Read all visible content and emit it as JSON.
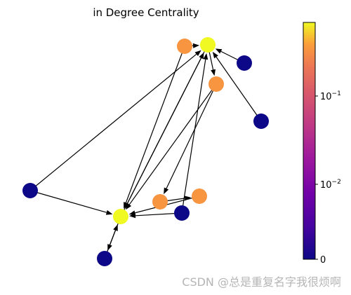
{
  "figure": {
    "title": "in Degree Centrality",
    "watermark": "CSDN @总是重复名字我很烦啊"
  },
  "colorbar": {
    "colormap": "plasma",
    "scale": "log",
    "ticks": [
      {
        "base": "10",
        "exp": "−1"
      },
      {
        "base": "10",
        "exp": "−2"
      },
      {
        "base": "0",
        "exp": ""
      }
    ]
  },
  "graph": {
    "directed": true,
    "nodes": [
      {
        "id": "n0",
        "color": "#f0f921"
      },
      {
        "id": "n1",
        "color": "#f89540"
      },
      {
        "id": "n2",
        "color": "#0d0887"
      },
      {
        "id": "n3",
        "color": "#f89540"
      },
      {
        "id": "n4",
        "color": "#0d0887"
      },
      {
        "id": "n5",
        "color": "#0d0887"
      },
      {
        "id": "n6",
        "color": "#f0f921"
      },
      {
        "id": "n7",
        "color": "#f89540"
      },
      {
        "id": "n8",
        "color": "#f89540"
      },
      {
        "id": "n9",
        "color": "#0d0887"
      },
      {
        "id": "n10",
        "color": "#0d0887"
      }
    ],
    "edges": [
      [
        "n1",
        "n0"
      ],
      [
        "n2",
        "n0"
      ],
      [
        "n4",
        "n0"
      ],
      [
        "n0",
        "n3"
      ],
      [
        "n1",
        "n6"
      ],
      [
        "n5",
        "n0"
      ],
      [
        "n5",
        "n6"
      ],
      [
        "n6",
        "n0"
      ],
      [
        "n3",
        "n6"
      ],
      [
        "n3",
        "n7"
      ],
      [
        "n9",
        "n0"
      ],
      [
        "n9",
        "n6"
      ],
      [
        "n7",
        "n8"
      ],
      [
        "n8",
        "n6"
      ],
      [
        "n10",
        "n6"
      ],
      [
        "n6",
        "n10"
      ],
      [
        "n0",
        "n6"
      ]
    ]
  }
}
